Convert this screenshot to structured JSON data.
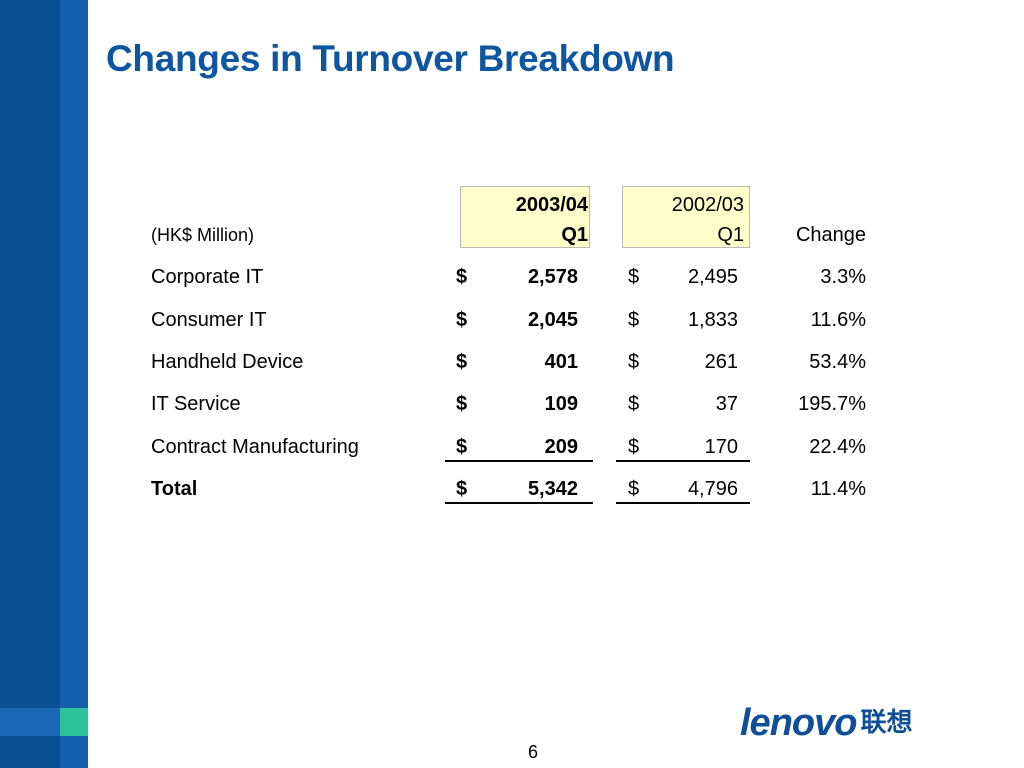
{
  "slide": {
    "title": "Changes in Turnover Breakdown",
    "page_number": "6"
  },
  "table": {
    "unit_label": "(HK$ Million)",
    "col1_header": [
      "2003/04",
      "Q1"
    ],
    "col2_header": [
      "2002/03",
      "Q1"
    ],
    "change_header": "Change",
    "currency": "$",
    "rows": [
      {
        "label": "Corporate IT",
        "current": "2,578",
        "prior": "2,495",
        "change": "3.3%"
      },
      {
        "label": "Consumer IT",
        "current": "2,045",
        "prior": "1,833",
        "change": "11.6%"
      },
      {
        "label": "Handheld Device",
        "current": "401",
        "prior": "261",
        "change": "53.4%"
      },
      {
        "label": "IT Service",
        "current": "109",
        "prior": "37",
        "change": "195.7%"
      },
      {
        "label": "Contract Manufacturing",
        "current": "209",
        "prior": "170",
        "change": "22.4%"
      }
    ],
    "total": {
      "label": "Total",
      "current": "5,342",
      "prior": "4,796",
      "change": "11.4%"
    }
  },
  "logo": {
    "brand_en": "lenovo",
    "brand_cn": "联想"
  },
  "colors": {
    "title": "#0f56a0",
    "sidebar_dark": "#0b4f93",
    "sidebar_light": "#1460ad",
    "accent_green": "#2bc49a",
    "header_fill": "#ffffcc"
  }
}
